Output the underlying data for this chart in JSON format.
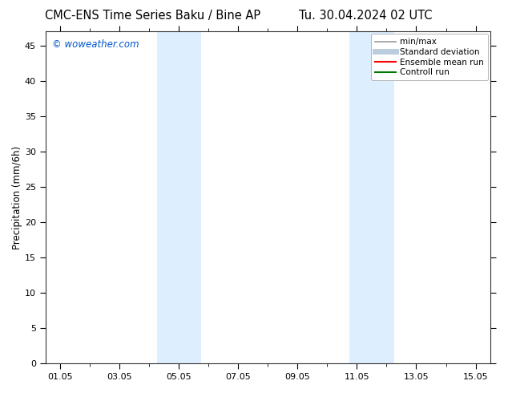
{
  "title_left": "CMC-ENS Time Series Baku / Bine AP",
  "title_right": "Tu. 30.04.2024 02 UTC",
  "ylabel": "Precipitation (mm/6h)",
  "watermark": "© woweather.com",
  "watermark_color": "#0055cc",
  "background_color": "#ffffff",
  "plot_bg_color": "#ffffff",
  "ylim": [
    0,
    47
  ],
  "yticks": [
    0,
    5,
    10,
    15,
    20,
    25,
    30,
    35,
    40,
    45
  ],
  "xlim": [
    0,
    15
  ],
  "x_tick_labels": [
    "01.05",
    "03.05",
    "05.05",
    "07.05",
    "09.05",
    "11.05",
    "13.05",
    "15.05"
  ],
  "x_tick_positions": [
    0.5,
    2.5,
    4.5,
    6.5,
    8.5,
    10.5,
    12.5,
    14.5
  ],
  "shaded_regions": [
    {
      "x_start": 3.75,
      "x_end": 5.25,
      "color": "#ddeeff",
      "alpha": 1.0
    },
    {
      "x_start": 10.25,
      "x_end": 11.75,
      "color": "#ddeeff",
      "alpha": 1.0
    }
  ],
  "legend_entries": [
    {
      "label": "min/max",
      "color": "#999999",
      "lw": 1.2,
      "style": "solid"
    },
    {
      "label": "Standard deviation",
      "color": "#bbccdd",
      "lw": 5,
      "style": "solid"
    },
    {
      "label": "Ensemble mean run",
      "color": "#ff0000",
      "lw": 1.5,
      "style": "solid"
    },
    {
      "label": "Controll run",
      "color": "#007700",
      "lw": 1.5,
      "style": "solid"
    }
  ],
  "title_fontsize": 10.5,
  "axis_fontsize": 8.5,
  "tick_fontsize": 8,
  "legend_fontsize": 7.5
}
